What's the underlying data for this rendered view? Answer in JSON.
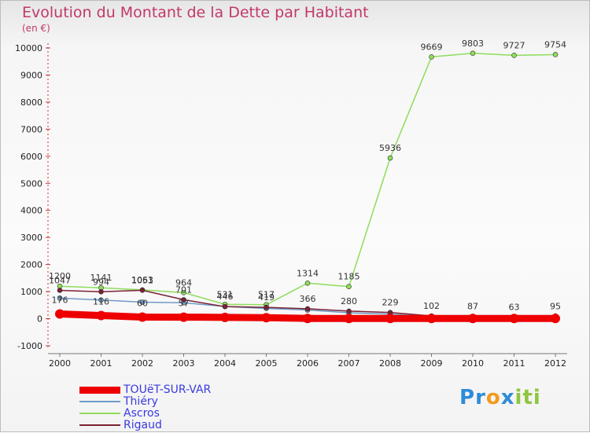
{
  "title": "Evolution du Montant de la Dette par Habitant",
  "unit": "(en €)",
  "logo": {
    "text": "Proxiti",
    "letters": [
      "P",
      "r",
      "o",
      "x",
      "i",
      "t",
      "i"
    ],
    "colors": [
      "#2e8bd8",
      "#2e8bd8",
      "#f29a1b",
      "#2e8bd8",
      "#8ec63f",
      "#8ec63f",
      "#8ec63f"
    ]
  },
  "chart_data": {
    "type": "line",
    "categories": [
      "2000",
      "2001",
      "2002",
      "2003",
      "2004",
      "2005",
      "2006",
      "2007",
      "2008",
      "2009",
      "2010",
      "2011",
      "2012"
    ],
    "ylim": [
      -1000,
      10000
    ],
    "yticks": [
      "-1000",
      "0",
      "1000",
      "2000",
      "3000",
      "4000",
      "5000",
      "6000",
      "7000",
      "8000",
      "9000",
      "10000"
    ],
    "grid": false,
    "legend_position": "bottom-left",
    "series": [
      {
        "name": "TOUëT-SUR-VAR",
        "color": "#ee0000",
        "width": 9,
        "marker": 6,
        "values": [
          176,
          116,
          60,
          57,
          50,
          38,
          10,
          10,
          10,
          10,
          10,
          10,
          10
        ],
        "labels": [
          "176",
          "116",
          "60",
          "57",
          "",
          "",
          "",
          "",
          "",
          "",
          "",
          "",
          ""
        ]
      },
      {
        "name": "Thiéry",
        "color": "#6f9bc9",
        "width": 1.5,
        "marker": 3,
        "values": [
          760,
          690,
          610,
          590,
          450,
          380,
          320,
          220,
          170,
          80,
          60,
          55,
          100
        ],
        "labels": [
          "",
          "",
          "",
          "",
          "",
          "",
          "",
          "",
          "",
          "",
          "",
          "",
          ""
        ]
      },
      {
        "name": "Ascros",
        "color": "#8fdc5c",
        "width": 1.5,
        "marker": 3,
        "values": [
          1200,
          1141,
          1063,
          964,
          531,
          517,
          1314,
          1185,
          5936,
          9669,
          9803,
          9727,
          9754
        ],
        "labels": [
          "1200",
          "1141",
          "1063",
          "964",
          "531",
          "517",
          "1314",
          "1185",
          "5936",
          "9669",
          "9803",
          "9727",
          "9754"
        ]
      },
      {
        "name": "Rigaud",
        "color": "#7b2233",
        "width": 1.5,
        "marker": 3,
        "values": [
          1047,
          994,
          1051,
          701,
          446,
          419,
          366,
          280,
          229,
          102,
          87,
          63,
          95
        ],
        "labels": [
          "1047",
          "994",
          "1051",
          "701",
          "446",
          "419",
          "366",
          "280",
          "229",
          "102",
          "87",
          "63",
          "95"
        ]
      }
    ]
  }
}
